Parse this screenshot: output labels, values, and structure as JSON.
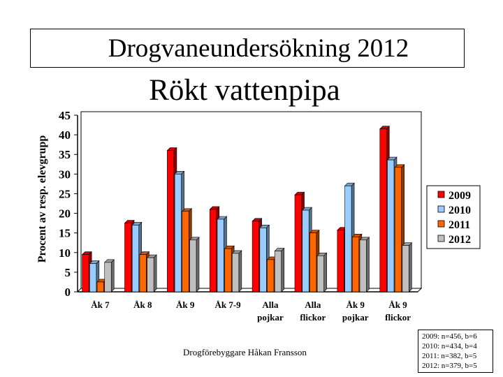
{
  "title_line1": "Drogvaneundersökning 2012",
  "title_line2": "Rökt vattenpipa",
  "footer": "Drogförebyggare Håkan Fransson",
  "sample_notes": [
    "2009: n=456, b=6",
    "2010: n=434, b=4",
    "2011: n=382, b=5",
    "2012: n=379, b=5"
  ],
  "chart_data": {
    "type": "bar",
    "title": "Rökt vattenpipa",
    "ylabel": "Procent av resp. elevgrupp",
    "xlabel": "",
    "ylim": [
      0,
      45
    ],
    "yticks": [
      0,
      5,
      10,
      15,
      20,
      25,
      30,
      35,
      40,
      45
    ],
    "grid": false,
    "legend_position": "right",
    "categories": [
      [
        "Åk 7"
      ],
      [
        "Åk 8"
      ],
      [
        "Åk 9"
      ],
      [
        "Åk 7-9"
      ],
      [
        "Alla",
        "pojkar"
      ],
      [
        "Alla",
        "flickor"
      ],
      [
        "Åk 9",
        "pojkar"
      ],
      [
        "Åk 9",
        "flickor"
      ]
    ],
    "series": [
      {
        "name": "2009",
        "color": "#ff0000",
        "values": [
          9.5,
          17.5,
          36,
          21,
          18,
          24.7,
          15.7,
          41.5
        ]
      },
      {
        "name": "2010",
        "color": "#99ccff",
        "values": [
          7.2,
          17,
          30,
          18.5,
          16.3,
          20.8,
          27,
          33.6
        ]
      },
      {
        "name": "2011",
        "color": "#ff6600",
        "values": [
          2.5,
          9.5,
          20.5,
          11,
          8.2,
          15,
          14,
          31.7
        ]
      },
      {
        "name": "2012",
        "color": "#c0c0c0",
        "values": [
          7.5,
          8.7,
          13.2,
          9.8,
          10.4,
          9.2,
          13.2,
          11.8
        ]
      }
    ]
  }
}
